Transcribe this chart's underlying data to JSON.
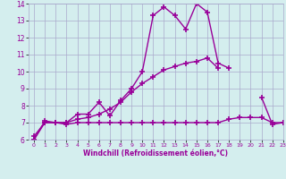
{
  "line1_x": [
    0,
    1,
    2,
    3,
    4,
    5,
    6,
    7,
    8,
    9,
    10,
    11,
    12,
    13,
    14,
    15,
    16,
    17,
    18,
    19,
    20,
    21,
    22,
    23
  ],
  "line1_y": [
    6.0,
    7.1,
    7.0,
    7.0,
    7.5,
    7.5,
    8.2,
    7.4,
    8.3,
    9.0,
    10.0,
    13.3,
    13.8,
    13.3,
    12.5,
    14.0,
    13.5,
    10.5,
    10.2,
    null,
    null,
    8.5,
    6.9,
    7.0
  ],
  "line2_x": [
    0,
    1,
    2,
    3,
    4,
    5,
    6,
    7,
    8,
    9,
    10,
    11,
    12,
    13,
    14,
    15,
    16,
    17,
    18,
    19,
    20,
    21,
    22,
    23
  ],
  "line2_y": [
    6.2,
    7.0,
    7.0,
    7.0,
    7.2,
    7.3,
    7.5,
    7.8,
    8.2,
    8.8,
    9.3,
    9.7,
    10.1,
    10.3,
    10.5,
    10.6,
    10.8,
    10.2,
    null,
    null,
    null,
    null,
    null,
    null
  ],
  "line3_x": [
    0,
    1,
    2,
    3,
    4,
    5,
    6,
    7,
    8,
    9,
    10,
    11,
    12,
    13,
    14,
    15,
    16,
    17,
    18,
    19,
    20,
    21,
    22,
    23
  ],
  "line3_y": [
    6.0,
    7.0,
    7.0,
    6.9,
    7.0,
    7.0,
    7.0,
    7.0,
    7.0,
    7.0,
    7.0,
    7.0,
    7.0,
    7.0,
    7.0,
    7.0,
    7.0,
    7.0,
    7.2,
    7.3,
    7.3,
    7.3,
    7.0,
    7.0
  ],
  "color": "#990099",
  "bg_color": "#d4eeee",
  "grid_color": "#aaaacc",
  "xlabel": "Windchill (Refroidissement éolien,°C)",
  "xlim": [
    -0.5,
    23
  ],
  "ylim": [
    6,
    14
  ],
  "yticks": [
    6,
    7,
    8,
    9,
    10,
    11,
    12,
    13,
    14
  ],
  "xticks": [
    0,
    1,
    2,
    3,
    4,
    5,
    6,
    7,
    8,
    9,
    10,
    11,
    12,
    13,
    14,
    15,
    16,
    17,
    18,
    19,
    20,
    21,
    22,
    23
  ],
  "marker": "+",
  "markersize": 5,
  "linewidth": 1.0
}
